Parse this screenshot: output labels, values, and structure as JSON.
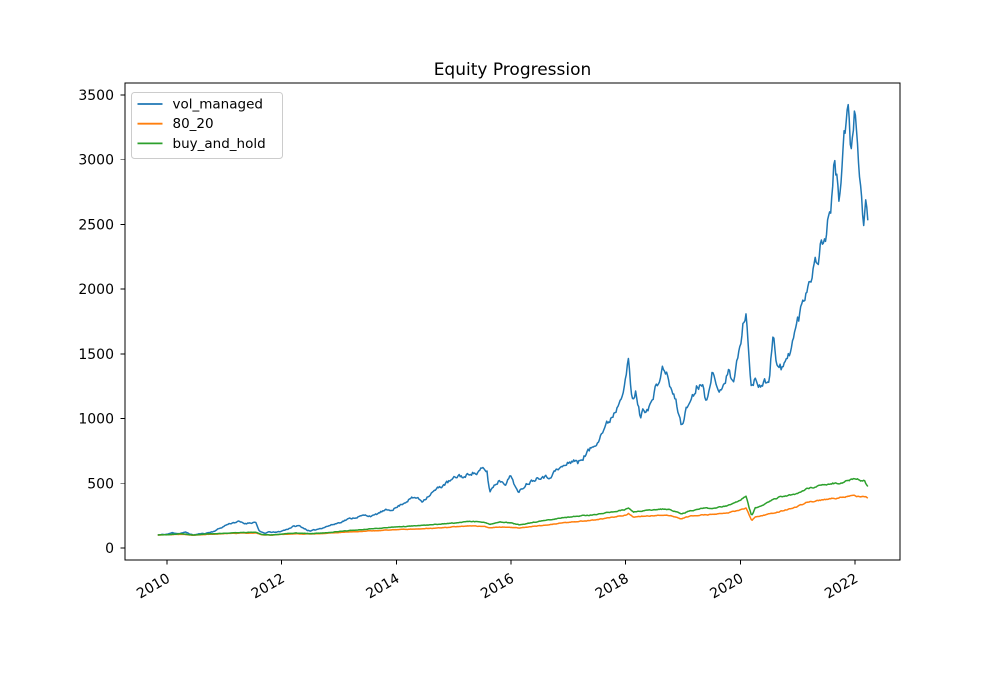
{
  "chart_data": {
    "type": "line",
    "title": "Equity Progression",
    "xlabel": "",
    "ylabel": "",
    "grid": false,
    "background": "#ffffff",
    "axis_color": "#000000",
    "legend_position": "upper left",
    "x_ticks": [
      2010,
      2012,
      2014,
      2016,
      2018,
      2020,
      2022
    ],
    "y_ticks": [
      0,
      500,
      1000,
      1500,
      2000,
      2500,
      3000,
      3500
    ],
    "xlim": [
      2009.27,
      2022.79
    ],
    "ylim": [
      -93,
      3593
    ],
    "series": [
      {
        "name": "vol_managed",
        "color": "#1f77b4",
        "points": [
          [
            2009.84,
            100
          ],
          [
            2010.0,
            106
          ],
          [
            2010.1,
            118
          ],
          [
            2010.2,
            112
          ],
          [
            2010.33,
            121
          ],
          [
            2010.45,
            100
          ],
          [
            2010.55,
            108
          ],
          [
            2010.65,
            112
          ],
          [
            2010.8,
            126
          ],
          [
            2010.95,
            158
          ],
          [
            2011.05,
            182
          ],
          [
            2011.15,
            196
          ],
          [
            2011.25,
            204
          ],
          [
            2011.35,
            188
          ],
          [
            2011.45,
            196
          ],
          [
            2011.55,
            200
          ],
          [
            2011.61,
            126
          ],
          [
            2011.7,
            114
          ],
          [
            2011.8,
            124
          ],
          [
            2011.9,
            120
          ],
          [
            2012.0,
            131
          ],
          [
            2012.1,
            146
          ],
          [
            2012.2,
            166
          ],
          [
            2012.3,
            172
          ],
          [
            2012.4,
            150
          ],
          [
            2012.5,
            128
          ],
          [
            2012.6,
            142
          ],
          [
            2012.75,
            162
          ],
          [
            2012.9,
            182
          ],
          [
            2013.0,
            196
          ],
          [
            2013.15,
            222
          ],
          [
            2013.3,
            238
          ],
          [
            2013.45,
            252
          ],
          [
            2013.6,
            248
          ],
          [
            2013.75,
            282
          ],
          [
            2013.9,
            296
          ],
          [
            2014.0,
            312
          ],
          [
            2014.1,
            342
          ],
          [
            2014.25,
            382
          ],
          [
            2014.35,
            390
          ],
          [
            2014.45,
            362
          ],
          [
            2014.55,
            402
          ],
          [
            2014.7,
            452
          ],
          [
            2014.85,
            496
          ],
          [
            2014.95,
            518
          ],
          [
            2015.1,
            562
          ],
          [
            2015.2,
            545
          ],
          [
            2015.3,
            588
          ],
          [
            2015.4,
            575
          ],
          [
            2015.5,
            608
          ],
          [
            2015.58,
            592
          ],
          [
            2015.63,
            432
          ],
          [
            2015.7,
            482
          ],
          [
            2015.8,
            524
          ],
          [
            2015.9,
            502
          ],
          [
            2016.0,
            558
          ],
          [
            2016.08,
            478
          ],
          [
            2016.13,
            418
          ],
          [
            2016.25,
            492
          ],
          [
            2016.4,
            532
          ],
          [
            2016.55,
            562
          ],
          [
            2016.65,
            542
          ],
          [
            2016.75,
            588
          ],
          [
            2016.88,
            622
          ],
          [
            2017.0,
            652
          ],
          [
            2017.1,
            686
          ],
          [
            2017.17,
            655
          ],
          [
            2017.3,
            725
          ],
          [
            2017.45,
            790
          ],
          [
            2017.55,
            872
          ],
          [
            2017.7,
            972
          ],
          [
            2017.85,
            1090
          ],
          [
            2017.95,
            1240
          ],
          [
            2018.05,
            1442
          ],
          [
            2018.1,
            1180
          ],
          [
            2018.14,
            1128
          ],
          [
            2018.18,
            1205
          ],
          [
            2018.25,
            1022
          ],
          [
            2018.35,
            1082
          ],
          [
            2018.45,
            1118
          ],
          [
            2018.55,
            1258
          ],
          [
            2018.67,
            1398
          ],
          [
            2018.8,
            1222
          ],
          [
            2018.9,
            1088
          ],
          [
            2018.97,
            948
          ],
          [
            2019.05,
            1058
          ],
          [
            2019.15,
            1165
          ],
          [
            2019.25,
            1252
          ],
          [
            2019.33,
            1300
          ],
          [
            2019.4,
            1132
          ],
          [
            2019.5,
            1372
          ],
          [
            2019.6,
            1208
          ],
          [
            2019.7,
            1282
          ],
          [
            2019.8,
            1358
          ],
          [
            2019.87,
            1282
          ],
          [
            2019.95,
            1448
          ],
          [
            2020.02,
            1625
          ],
          [
            2020.1,
            1848
          ],
          [
            2020.14,
            1582
          ],
          [
            2020.18,
            1232
          ],
          [
            2020.26,
            1318
          ],
          [
            2020.38,
            1262
          ],
          [
            2020.5,
            1304
          ],
          [
            2020.58,
            1695
          ],
          [
            2020.63,
            1402
          ],
          [
            2020.72,
            1382
          ],
          [
            2020.82,
            1448
          ],
          [
            2020.92,
            1618
          ],
          [
            2021.0,
            1745
          ],
          [
            2021.1,
            1912
          ],
          [
            2021.2,
            2088
          ],
          [
            2021.3,
            2192
          ],
          [
            2021.4,
            2322
          ],
          [
            2021.5,
            2448
          ],
          [
            2021.58,
            2652
          ],
          [
            2021.65,
            2988
          ],
          [
            2021.72,
            2702
          ],
          [
            2021.8,
            3095
          ],
          [
            2021.88,
            3402
          ],
          [
            2021.93,
            2958
          ],
          [
            2021.98,
            3348
          ],
          [
            2022.04,
            3240
          ],
          [
            2022.1,
            2802
          ],
          [
            2022.15,
            2478
          ],
          [
            2022.19,
            2662
          ],
          [
            2022.23,
            2568
          ]
        ]
      },
      {
        "name": "80_20",
        "color": "#ff7f0e",
        "points": [
          [
            2009.84,
            100
          ],
          [
            2010.1,
            104
          ],
          [
            2010.3,
            106
          ],
          [
            2010.45,
            98
          ],
          [
            2010.7,
            105
          ],
          [
            2010.9,
            109
          ],
          [
            2011.1,
            112
          ],
          [
            2011.3,
            115
          ],
          [
            2011.55,
            116
          ],
          [
            2011.65,
            103
          ],
          [
            2011.84,
            100
          ],
          [
            2012.0,
            105
          ],
          [
            2012.25,
            110
          ],
          [
            2012.5,
            107
          ],
          [
            2012.75,
            112
          ],
          [
            2013.0,
            120
          ],
          [
            2013.25,
            126
          ],
          [
            2013.5,
            131
          ],
          [
            2013.75,
            136
          ],
          [
            2014.0,
            142
          ],
          [
            2014.3,
            147
          ],
          [
            2014.6,
            152
          ],
          [
            2014.9,
            160
          ],
          [
            2015.1,
            166
          ],
          [
            2015.3,
            171
          ],
          [
            2015.55,
            166
          ],
          [
            2015.63,
            157
          ],
          [
            2015.8,
            162
          ],
          [
            2016.0,
            160
          ],
          [
            2016.15,
            154
          ],
          [
            2016.35,
            164
          ],
          [
            2016.6,
            176
          ],
          [
            2016.88,
            193
          ],
          [
            2017.1,
            202
          ],
          [
            2017.35,
            212
          ],
          [
            2017.6,
            226
          ],
          [
            2017.85,
            242
          ],
          [
            2018.0,
            255
          ],
          [
            2018.05,
            268
          ],
          [
            2018.14,
            238
          ],
          [
            2018.3,
            245
          ],
          [
            2018.5,
            250
          ],
          [
            2018.7,
            256
          ],
          [
            2018.85,
            242
          ],
          [
            2018.97,
            227
          ],
          [
            2019.1,
            243
          ],
          [
            2019.3,
            256
          ],
          [
            2019.5,
            258
          ],
          [
            2019.65,
            264
          ],
          [
            2019.8,
            272
          ],
          [
            2019.95,
            290
          ],
          [
            2020.1,
            309
          ],
          [
            2020.16,
            252
          ],
          [
            2020.2,
            210
          ],
          [
            2020.26,
            240
          ],
          [
            2020.4,
            252
          ],
          [
            2020.55,
            268
          ],
          [
            2020.7,
            283
          ],
          [
            2020.85,
            300
          ],
          [
            2021.0,
            322
          ],
          [
            2021.15,
            350
          ],
          [
            2021.3,
            362
          ],
          [
            2021.45,
            372
          ],
          [
            2021.6,
            382
          ],
          [
            2021.75,
            390
          ],
          [
            2021.9,
            398
          ],
          [
            2022.0,
            404
          ],
          [
            2022.08,
            394
          ],
          [
            2022.15,
            400
          ],
          [
            2022.23,
            387
          ]
        ]
      },
      {
        "name": "buy_and_hold",
        "color": "#2ca02c",
        "points": [
          [
            2009.84,
            100
          ],
          [
            2010.1,
            106
          ],
          [
            2010.3,
            109
          ],
          [
            2010.45,
            100
          ],
          [
            2010.7,
            108
          ],
          [
            2010.9,
            112
          ],
          [
            2011.1,
            116
          ],
          [
            2011.3,
            120
          ],
          [
            2011.55,
            122
          ],
          [
            2011.65,
            105
          ],
          [
            2011.84,
            101
          ],
          [
            2012.0,
            108
          ],
          [
            2012.25,
            115
          ],
          [
            2012.5,
            111
          ],
          [
            2012.75,
            117
          ],
          [
            2013.0,
            128
          ],
          [
            2013.25,
            137
          ],
          [
            2013.5,
            146
          ],
          [
            2013.75,
            154
          ],
          [
            2014.0,
            163
          ],
          [
            2014.3,
            170
          ],
          [
            2014.6,
            179
          ],
          [
            2014.9,
            189
          ],
          [
            2015.1,
            197
          ],
          [
            2015.3,
            205
          ],
          [
            2015.55,
            198
          ],
          [
            2015.63,
            184
          ],
          [
            2015.8,
            200
          ],
          [
            2016.0,
            194
          ],
          [
            2016.15,
            178
          ],
          [
            2016.35,
            196
          ],
          [
            2016.6,
            212
          ],
          [
            2016.88,
            232
          ],
          [
            2017.1,
            243
          ],
          [
            2017.35,
            253
          ],
          [
            2017.6,
            266
          ],
          [
            2017.85,
            284
          ],
          [
            2018.0,
            298
          ],
          [
            2018.05,
            310
          ],
          [
            2018.14,
            278
          ],
          [
            2018.3,
            288
          ],
          [
            2018.5,
            296
          ],
          [
            2018.7,
            303
          ],
          [
            2018.85,
            285
          ],
          [
            2018.97,
            262
          ],
          [
            2019.1,
            284
          ],
          [
            2019.3,
            305
          ],
          [
            2019.5,
            308
          ],
          [
            2019.65,
            316
          ],
          [
            2019.8,
            330
          ],
          [
            2019.95,
            360
          ],
          [
            2020.1,
            398
          ],
          [
            2020.16,
            300
          ],
          [
            2020.2,
            248
          ],
          [
            2020.26,
            309
          ],
          [
            2020.4,
            330
          ],
          [
            2020.55,
            368
          ],
          [
            2020.7,
            395
          ],
          [
            2020.85,
            408
          ],
          [
            2020.96,
            412
          ],
          [
            2021.1,
            448
          ],
          [
            2021.25,
            468
          ],
          [
            2021.4,
            480
          ],
          [
            2021.55,
            495
          ],
          [
            2021.66,
            502
          ],
          [
            2021.75,
            498
          ],
          [
            2021.85,
            515
          ],
          [
            2021.95,
            532
          ],
          [
            2022.05,
            538
          ],
          [
            2022.1,
            512
          ],
          [
            2022.16,
            520
          ],
          [
            2022.23,
            468
          ]
        ]
      }
    ]
  }
}
